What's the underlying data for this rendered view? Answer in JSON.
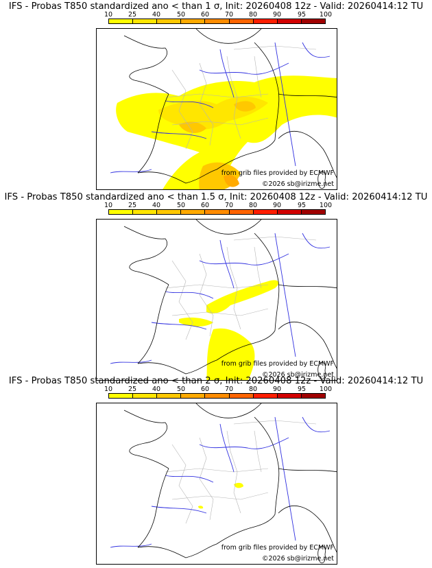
{
  "palette": [
    "#ffff00",
    "#ffe600",
    "#ffc800",
    "#ffaa00",
    "#ff8c00",
    "#ff6400",
    "#ff1e00",
    "#d20000",
    "#a00000",
    "#640000"
  ],
  "colorbar": {
    "labels": [
      "10",
      "25",
      "40",
      "50",
      "60",
      "70",
      "80",
      "90",
      "95",
      "100"
    ]
  },
  "credits": {
    "source": "from grib files provided by ECMWF",
    "copyright": "©2026 sb@irizme.net"
  },
  "panels": [
    {
      "title": "IFS - Probas T850  standardized ano < than 1 σ, Init: 20260408 12z - Valid: 20260414:12 TU",
      "coverage": "high"
    },
    {
      "title": "IFS - Probas T850  standardized ano < than 1.5 σ, Init: 20260408 12z - Valid: 20260414:12 TU",
      "coverage": "medium"
    },
    {
      "title": "IFS - Probas T850  standardized ano < than 2 σ, Init: 20260408 12z - Valid: 20260414:12 TU",
      "coverage": "low"
    }
  ]
}
